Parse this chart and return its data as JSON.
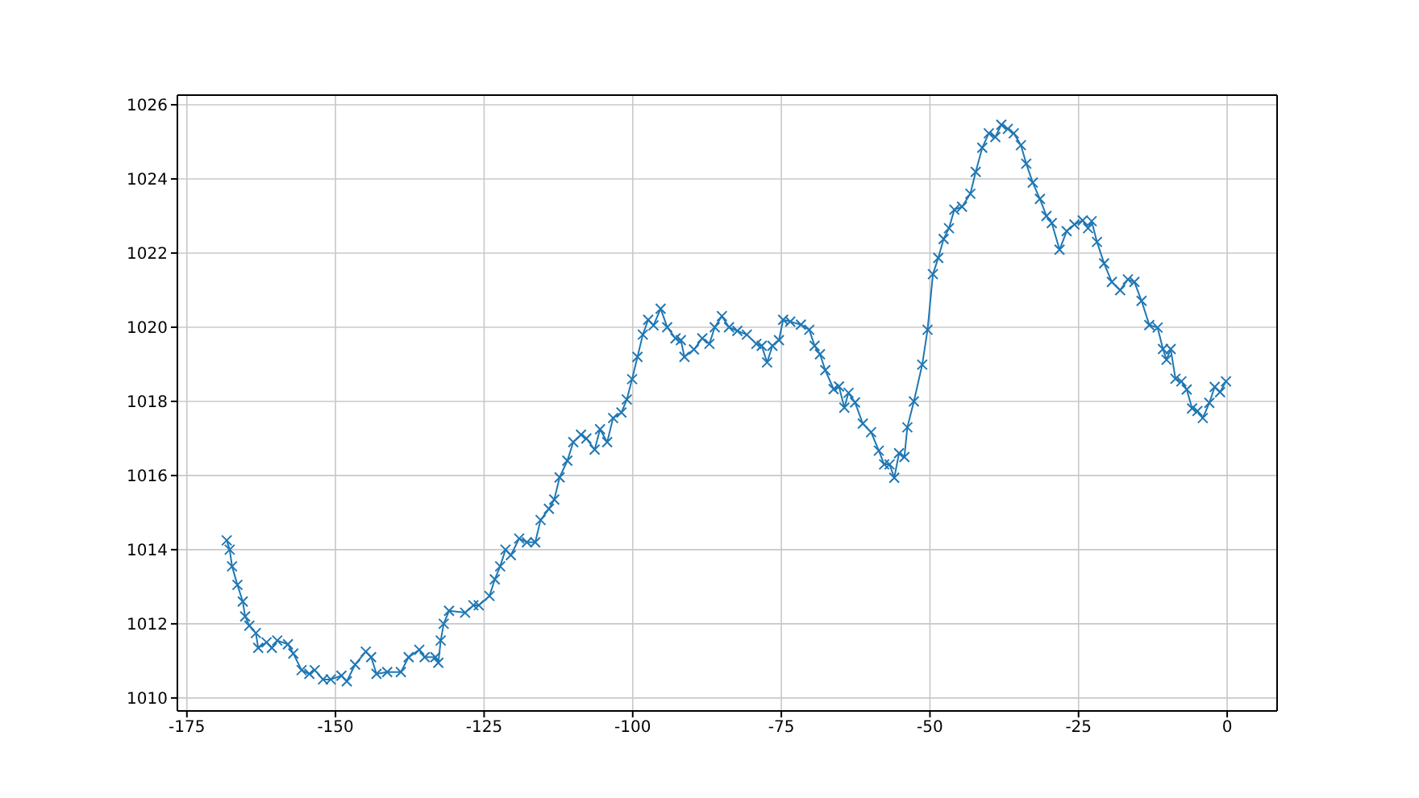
{
  "chart_data": {
    "type": "line",
    "x": [
      -168.3,
      -167.8,
      -167.4,
      -166.5,
      -165.6,
      -165.2,
      -164.5,
      -163.4,
      -163,
      -161.6,
      -160.7,
      -159.8,
      -158,
      -157.1,
      -155.7,
      -154.4,
      -153.5,
      -152.1,
      -150.8,
      -149,
      -148.1,
      -146.7,
      -144.9,
      -144,
      -143.1,
      -141.3,
      -139,
      -137.7,
      -135.9,
      -135,
      -133.2,
      -132.7,
      -132.3,
      -131.8,
      -130.9,
      -128.2,
      -126.8,
      -125.9,
      -124.1,
      -123.2,
      -122.3,
      -121.4,
      -120.5,
      -119.1,
      -117.8,
      -116.4,
      -115.5,
      -114.1,
      -113.2,
      -112.3,
      -111,
      -110,
      -108.7,
      -107.8,
      -106.4,
      -105.5,
      -104.3,
      -103.3,
      -101.9,
      -101,
      -100.1,
      -99.2,
      -98.3,
      -97.4,
      -96.5,
      -95.3,
      -94.2,
      -92.8,
      -91.9,
      -91.3,
      -89.7,
      -88.3,
      -87.1,
      -86.2,
      -85,
      -83.8,
      -82.4,
      -80.8,
      -79.2,
      -78.3,
      -77.4,
      -76.5,
      -75.4,
      -74.7,
      -73.5,
      -71.7,
      -70.3,
      -69.4,
      -68.5,
      -67.6,
      -66.2,
      -65.3,
      -64.4,
      -63.7,
      -62.6,
      -61.3,
      -59.9,
      -58.6,
      -57.7,
      -56.8,
      -56,
      -55.2,
      -54.3,
      -53.8,
      -52.7,
      -51.3,
      -50.4,
      -49.5,
      -48.6,
      -47.7,
      -46.8,
      -45.9,
      -44.6,
      -43.2,
      -42.3,
      -41.2,
      -40.1,
      -39,
      -38,
      -36.9,
      -35.9,
      -34.7,
      -33.8,
      -32.7,
      -31.5,
      -30.4,
      -29.5,
      -28.2,
      -27,
      -25.7,
      -24.3,
      -23.4,
      -22.8,
      -21.9,
      -20.7,
      -19.4,
      -18,
      -16.7,
      -15.6,
      -14.4,
      -13.1,
      -11.7,
      -10.8,
      -10.2,
      -9.5,
      -8.7,
      -7.7,
      -6.8,
      -5.9,
      -5,
      -4.1,
      -3,
      -2.1,
      -1.2,
      -0.2
    ],
    "values": [
      1014.25,
      1014.0,
      1013.55,
      1013.05,
      1012.6,
      1012.2,
      1011.95,
      1011.75,
      1011.35,
      1011.5,
      1011.35,
      1011.55,
      1011.45,
      1011.2,
      1010.75,
      1010.65,
      1010.75,
      1010.5,
      1010.5,
      1010.6,
      1010.45,
      1010.9,
      1011.25,
      1011.1,
      1010.65,
      1010.7,
      1010.7,
      1011.1,
      1011.3,
      1011.1,
      1011.1,
      1010.95,
      1011.55,
      1012.0,
      1012.35,
      1012.3,
      1012.5,
      1012.5,
      1012.75,
      1013.2,
      1013.55,
      1014.0,
      1013.85,
      1014.3,
      1014.2,
      1014.2,
      1014.8,
      1015.1,
      1015.35,
      1015.95,
      1016.4,
      1016.9,
      1017.1,
      1017.0,
      1016.7,
      1017.25,
      1016.9,
      1017.55,
      1017.7,
      1018.05,
      1018.6,
      1019.2,
      1019.8,
      1020.2,
      1020.05,
      1020.5,
      1020.0,
      1019.7,
      1019.65,
      1019.2,
      1019.4,
      1019.7,
      1019.55,
      1020.0,
      1020.3,
      1020.0,
      1019.9,
      1019.8,
      1019.55,
      1019.5,
      1019.05,
      1019.5,
      1019.65,
      1020.2,
      1020.15,
      1020.07,
      1019.93,
      1019.5,
      1019.27,
      1018.84,
      1018.33,
      1018.4,
      1017.83,
      1018.23,
      1017.97,
      1017.4,
      1017.17,
      1016.67,
      1016.3,
      1016.3,
      1015.94,
      1016.6,
      1016.5,
      1017.3,
      1018.0,
      1018.99,
      1019.93,
      1021.43,
      1021.87,
      1022.38,
      1022.67,
      1023.17,
      1023.25,
      1023.6,
      1024.19,
      1024.84,
      1025.23,
      1025.13,
      1025.46,
      1025.35,
      1025.23,
      1024.91,
      1024.41,
      1023.9,
      1023.46,
      1023.0,
      1022.81,
      1022.09,
      1022.59,
      1022.77,
      1022.88,
      1022.67,
      1022.86,
      1022.3,
      1021.72,
      1021.22,
      1021.0,
      1021.29,
      1021.22,
      1020.71,
      1020.06,
      1019.99,
      1019.41,
      1019.12,
      1019.41,
      1018.61,
      1018.54,
      1018.32,
      1017.81,
      1017.74,
      1017.55,
      1017.96,
      1018.39,
      1018.25,
      1018.54
    ],
    "color": "#1f77b4",
    "marker": "cross",
    "line_style": "solid",
    "grid": true,
    "xlim": [
      -176.6,
      8.4
    ],
    "xticks": [
      -175,
      -150,
      -125,
      -100,
      -75,
      -50,
      -25,
      0
    ],
    "ylim": [
      1009.65,
      1026.26
    ],
    "yticks": [
      1010,
      1012,
      1014,
      1016,
      1018,
      1020,
      1022,
      1024,
      1026
    ]
  }
}
